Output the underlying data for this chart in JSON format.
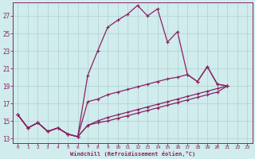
{
  "xlabel": "Windchill (Refroidissement éolien,°C)",
  "bg_color": "#d0ecec",
  "grid_color": "#b0d0d0",
  "line_color": "#882266",
  "xlim": [
    -0.5,
    23.5
  ],
  "ylim": [
    12.5,
    28.5
  ],
  "yticks": [
    13,
    15,
    17,
    19,
    21,
    23,
    25,
    27
  ],
  "xticks": [
    0,
    1,
    2,
    3,
    4,
    5,
    6,
    7,
    8,
    9,
    10,
    11,
    12,
    13,
    14,
    15,
    16,
    17,
    18,
    19,
    20,
    21,
    22,
    23
  ],
  "series1": [
    [
      0,
      15.7
    ],
    [
      1,
      14.2
    ],
    [
      2,
      14.8
    ],
    [
      3,
      13.8
    ],
    [
      4,
      14.2
    ],
    [
      5,
      13.5
    ],
    [
      6,
      13.2
    ],
    [
      7,
      20.2
    ],
    [
      8,
      23.0
    ],
    [
      9,
      25.7
    ],
    [
      10,
      26.5
    ],
    [
      11,
      27.2
    ],
    [
      12,
      28.2
    ],
    [
      13,
      27.0
    ],
    [
      14,
      27.8
    ],
    [
      15,
      24.0
    ],
    [
      16,
      25.2
    ],
    [
      17,
      20.3
    ],
    [
      18,
      19.5
    ],
    [
      19,
      21.2
    ],
    [
      20,
      19.2
    ],
    [
      21,
      19.0
    ]
  ],
  "series2": [
    [
      0,
      15.7
    ],
    [
      1,
      14.2
    ],
    [
      2,
      14.8
    ],
    [
      3,
      13.8
    ],
    [
      4,
      14.2
    ],
    [
      5,
      13.5
    ],
    [
      6,
      13.2
    ],
    [
      7,
      17.2
    ],
    [
      8,
      17.5
    ],
    [
      9,
      18.0
    ],
    [
      10,
      18.3
    ],
    [
      11,
      18.6
    ],
    [
      12,
      18.9
    ],
    [
      13,
      19.2
    ],
    [
      14,
      19.5
    ],
    [
      15,
      19.8
    ],
    [
      16,
      20.0
    ],
    [
      17,
      20.3
    ],
    [
      18,
      19.5
    ],
    [
      19,
      21.2
    ],
    [
      20,
      19.2
    ],
    [
      21,
      19.0
    ]
  ],
  "series3": [
    [
      0,
      15.7
    ],
    [
      1,
      14.2
    ],
    [
      2,
      14.8
    ],
    [
      3,
      13.8
    ],
    [
      4,
      14.2
    ],
    [
      5,
      13.5
    ],
    [
      6,
      13.2
    ],
    [
      7,
      14.5
    ],
    [
      8,
      15.0
    ],
    [
      9,
      15.4
    ],
    [
      10,
      15.7
    ],
    [
      11,
      16.0
    ],
    [
      12,
      16.3
    ],
    [
      13,
      16.6
    ],
    [
      14,
      16.9
    ],
    [
      15,
      17.2
    ],
    [
      16,
      17.5
    ],
    [
      17,
      17.8
    ],
    [
      18,
      18.1
    ],
    [
      19,
      18.4
    ],
    [
      20,
      18.7
    ],
    [
      21,
      19.0
    ]
  ],
  "series4": [
    [
      0,
      15.7
    ],
    [
      1,
      14.2
    ],
    [
      2,
      14.8
    ],
    [
      3,
      13.8
    ],
    [
      4,
      14.2
    ],
    [
      5,
      13.5
    ],
    [
      6,
      13.2
    ],
    [
      7,
      14.5
    ],
    [
      8,
      14.8
    ],
    [
      9,
      15.0
    ],
    [
      10,
      15.3
    ],
    [
      11,
      15.6
    ],
    [
      12,
      15.9
    ],
    [
      13,
      16.2
    ],
    [
      14,
      16.5
    ],
    [
      15,
      16.8
    ],
    [
      16,
      17.1
    ],
    [
      17,
      17.4
    ],
    [
      18,
      17.7
    ],
    [
      19,
      18.0
    ],
    [
      20,
      18.3
    ],
    [
      21,
      19.0
    ]
  ]
}
